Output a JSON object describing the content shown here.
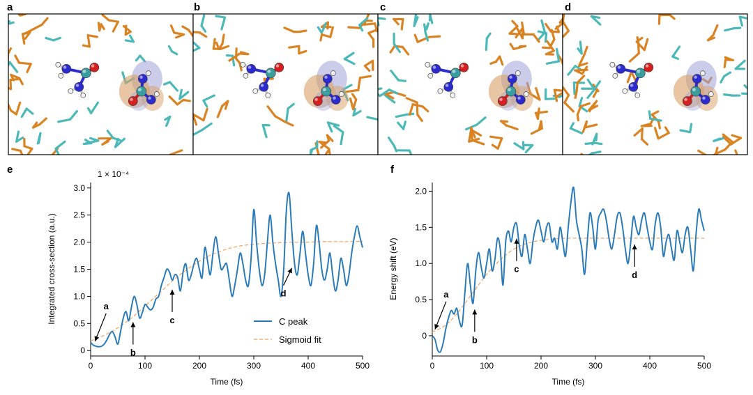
{
  "panels": {
    "a": "a",
    "b": "b",
    "c": "c",
    "d": "d",
    "e": "e",
    "f": "f"
  },
  "colors": {
    "c_peak": "#2b7bb9",
    "sigmoid": "#f4a261",
    "stick_orange": "#d98323",
    "stick_teal": "#4cb8b8",
    "atom_c": "#3a9ea0",
    "atom_n": "#2b2bd0",
    "atom_o": "#d42020",
    "atom_h": "#f0f0f0",
    "orbital_orange": "#d9a066",
    "orbital_blue": "#9ea3d9"
  },
  "chart_data": [
    {
      "type": "line",
      "panel": "e",
      "multiplier": "1 × 10⁻⁴",
      "xlabel": "Time (fs)",
      "ylabel": "Integrated cross-section (a.u.)",
      "xlim": [
        0,
        500
      ],
      "ylim": [
        -0.1,
        3.1
      ],
      "xticks": [
        "0",
        "100",
        "200",
        "300",
        "400",
        "500"
      ],
      "yticks": [
        "0",
        "0.5",
        "1.0",
        "1.5",
        "2.0",
        "2.5",
        "3.0"
      ],
      "legend": {
        "c_peak": "C peak",
        "sigmoid": "Sigmoid fit"
      },
      "annotations": [
        {
          "label": "a",
          "x": 8,
          "y": 0.12
        },
        {
          "label": "b",
          "x": 78,
          "y": 0.6
        },
        {
          "label": "c",
          "x": 150,
          "y": 1.2
        },
        {
          "label": "d",
          "x": 370,
          "y": 1.6
        }
      ],
      "series": [
        {
          "name": "C peak",
          "x": [
            0,
            5,
            10,
            15,
            20,
            25,
            30,
            35,
            40,
            45,
            50,
            55,
            60,
            65,
            70,
            75,
            80,
            85,
            90,
            95,
            100,
            105,
            110,
            115,
            120,
            125,
            130,
            135,
            140,
            145,
            150,
            155,
            160,
            165,
            170,
            175,
            180,
            185,
            190,
            195,
            200,
            205,
            210,
            215,
            220,
            225,
            230,
            235,
            240,
            245,
            250,
            255,
            260,
            265,
            270,
            275,
            280,
            285,
            290,
            295,
            300,
            305,
            310,
            315,
            320,
            325,
            330,
            335,
            340,
            345,
            350,
            355,
            360,
            365,
            370,
            375,
            380,
            385,
            390,
            395,
            400,
            405,
            410,
            415,
            420,
            425,
            430,
            435,
            440,
            445,
            450,
            455,
            460,
            465,
            470,
            475,
            480,
            485,
            490,
            495,
            500
          ],
          "y": [
            0.15,
            0.1,
            0.08,
            0.07,
            0.08,
            0.12,
            0.2,
            0.3,
            0.35,
            0.25,
            0.12,
            0.35,
            0.6,
            0.72,
            0.55,
            0.8,
            1.0,
            0.85,
            0.6,
            0.7,
            0.85,
            0.8,
            0.75,
            0.8,
            0.95,
            1.0,
            1.2,
            1.35,
            1.5,
            1.45,
            1.3,
            1.4,
            1.35,
            1.1,
            1.45,
            1.6,
            1.3,
            1.4,
            1.6,
            1.7,
            1.5,
            1.35,
            1.9,
            1.65,
            1.4,
            1.8,
            2.1,
            1.8,
            1.5,
            1.55,
            1.6,
            1.3,
            1.0,
            1.2,
            1.5,
            1.8,
            1.6,
            1.3,
            1.2,
            1.7,
            2.6,
            2.0,
            1.5,
            1.2,
            1.4,
            2.0,
            2.5,
            2.0,
            1.6,
            1.3,
            1.0,
            1.5,
            2.6,
            2.9,
            2.2,
            1.6,
            1.4,
            1.8,
            2.2,
            1.8,
            1.4,
            1.2,
            1.6,
            2.3,
            2.0,
            1.5,
            1.3,
            1.5,
            1.8,
            1.4,
            1.1,
            1.3,
            1.7,
            1.5,
            1.2,
            1.4,
            1.8,
            2.1,
            2.3,
            2.1,
            1.9
          ]
        },
        {
          "name": "Sigmoid fit",
          "x": [
            0,
            25,
            50,
            75,
            100,
            125,
            150,
            175,
            200,
            225,
            250,
            275,
            300,
            325,
            350,
            375,
            400,
            425,
            450,
            475,
            500
          ],
          "y": [
            0.18,
            0.28,
            0.42,
            0.6,
            0.82,
            1.05,
            1.28,
            1.48,
            1.65,
            1.78,
            1.87,
            1.93,
            1.96,
            1.98,
            1.99,
            2.0,
            2.0,
            2.01,
            2.01,
            2.01,
            2.02
          ]
        }
      ]
    },
    {
      "type": "line",
      "panel": "f",
      "xlabel": "Time (fs)",
      "ylabel": "Energy shift (eV)",
      "xlim": [
        0,
        500
      ],
      "ylim": [
        -0.28,
        2.12
      ],
      "xticks": [
        "0",
        "100",
        "200",
        "300",
        "400",
        "500"
      ],
      "yticks": [
        "0",
        "0.5",
        "1.0",
        "1.5",
        "2.0"
      ],
      "annotations": [
        {
          "label": "a",
          "x": 5,
          "y": 0.05
        },
        {
          "label": "b",
          "x": 78,
          "y": 0.42
        },
        {
          "label": "c",
          "x": 155,
          "y": 1.4
        },
        {
          "label": "d",
          "x": 372,
          "y": 1.32
        }
      ],
      "series": [
        {
          "name": "C peak",
          "x": [
            0,
            5,
            10,
            15,
            20,
            25,
            30,
            35,
            40,
            45,
            50,
            55,
            60,
            65,
            70,
            75,
            80,
            85,
            90,
            95,
            100,
            105,
            110,
            115,
            120,
            125,
            130,
            135,
            140,
            145,
            150,
            155,
            160,
            165,
            170,
            175,
            180,
            185,
            190,
            195,
            200,
            205,
            210,
            215,
            220,
            225,
            230,
            235,
            240,
            245,
            250,
            255,
            260,
            265,
            270,
            275,
            280,
            285,
            290,
            295,
            300,
            305,
            310,
            315,
            320,
            325,
            330,
            335,
            340,
            345,
            350,
            355,
            360,
            365,
            370,
            375,
            380,
            385,
            390,
            395,
            400,
            405,
            410,
            415,
            420,
            425,
            430,
            435,
            440,
            445,
            450,
            455,
            460,
            465,
            470,
            475,
            480,
            485,
            490,
            495,
            500
          ],
          "y": [
            0.0,
            -0.05,
            -0.2,
            -0.22,
            -0.1,
            0.1,
            0.25,
            0.35,
            0.3,
            0.38,
            0.2,
            0.15,
            0.6,
            1.0,
            0.7,
            0.45,
            0.9,
            1.15,
            0.95,
            0.8,
            1.0,
            1.2,
            0.9,
            1.05,
            1.35,
            1.2,
            0.7,
            1.3,
            1.45,
            1.3,
            1.5,
            1.55,
            1.25,
            1.1,
            1.4,
            1.2,
            1.0,
            1.3,
            1.5,
            1.6,
            1.45,
            1.3,
            1.5,
            1.55,
            1.3,
            1.35,
            1.2,
            1.5,
            1.3,
            1.1,
            1.5,
            1.85,
            2.05,
            1.6,
            1.4,
            1.2,
            0.85,
            1.3,
            1.7,
            1.5,
            1.2,
            1.6,
            1.7,
            1.75,
            1.6,
            1.35,
            1.2,
            1.4,
            1.65,
            1.7,
            1.5,
            1.2,
            1.0,
            1.3,
            1.65,
            1.5,
            1.4,
            1.6,
            1.7,
            1.5,
            1.3,
            1.2,
            1.55,
            1.7,
            1.5,
            1.1,
            1.3,
            1.4,
            1.2,
            1.05,
            1.45,
            1.3,
            1.15,
            1.4,
            1.5,
            1.2,
            0.9,
            1.4,
            1.75,
            1.6,
            1.45
          ]
        },
        {
          "name": "Sigmoid fit",
          "x": [
            0,
            25,
            50,
            75,
            100,
            125,
            150,
            175,
            200,
            225,
            250,
            275,
            300,
            325,
            350,
            375,
            400,
            425,
            450,
            475,
            500
          ],
          "y": [
            0.05,
            0.15,
            0.35,
            0.6,
            0.85,
            1.05,
            1.2,
            1.28,
            1.32,
            1.34,
            1.35,
            1.35,
            1.35,
            1.35,
            1.35,
            1.35,
            1.35,
            1.35,
            1.35,
            1.35,
            1.35
          ]
        }
      ]
    }
  ]
}
